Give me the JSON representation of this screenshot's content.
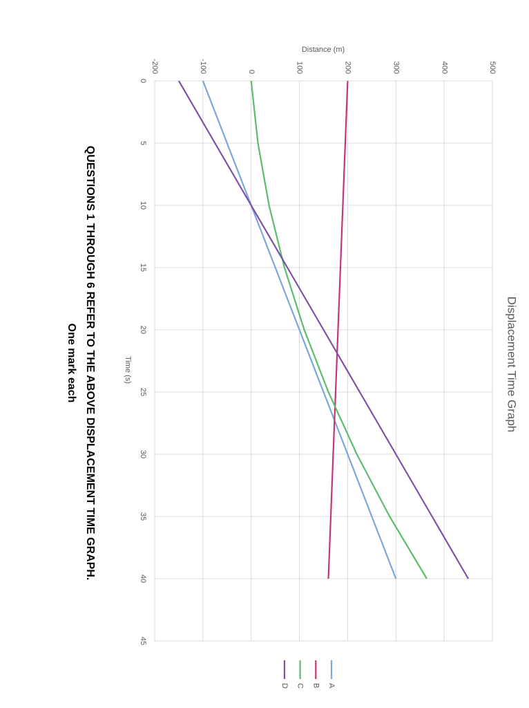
{
  "chart_data": {
    "type": "line",
    "title": "Displacement Time Graph",
    "xlabel": "Time (s)",
    "ylabel": "Distance (m)",
    "annotations": [
      "QUESTIONS 1 THROUGH 6 REFER TO THE ABOVE DISPLACEMENT TIME GRAPH.",
      "One mark each"
    ],
    "x": [
      0,
      5,
      10,
      15,
      20,
      25,
      30,
      35,
      40
    ],
    "series": [
      {
        "name": "A",
        "color": "#7aa6d8",
        "values": [
          -100,
          -50,
          0,
          50,
          100,
          150,
          200,
          250,
          300
        ]
      },
      {
        "name": "B",
        "color": "#c0367a",
        "values": [
          200,
          195,
          190,
          185,
          180,
          175,
          170,
          165,
          160
        ]
      },
      {
        "name": "C",
        "color": "#5bbd6a",
        "values": [
          0,
          14,
          37,
          69,
          110,
          160,
          219,
          287,
          364
        ]
      },
      {
        "name": "D",
        "color": "#7f4fa8",
        "values": [
          -150,
          -75,
          0,
          75,
          150,
          225,
          300,
          375,
          450
        ]
      }
    ],
    "xlim": [
      0,
      45
    ],
    "xticks": [
      0,
      5,
      10,
      15,
      20,
      25,
      30,
      35,
      40,
      45
    ],
    "ylim": [
      -200,
      500
    ],
    "yticks": [
      -200,
      -100,
      0,
      100,
      200,
      300,
      400,
      500
    ],
    "grid": true,
    "legend": "right",
    "rotated": true
  }
}
